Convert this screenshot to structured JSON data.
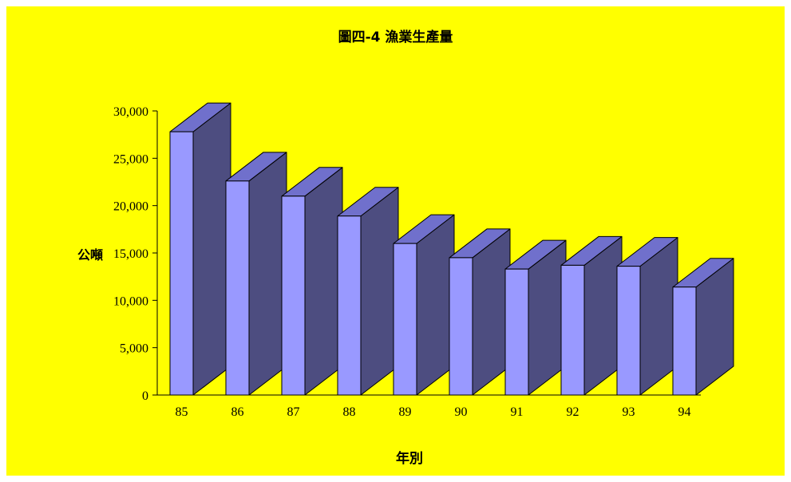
{
  "chart_data": {
    "type": "bar",
    "title": "圖四-4  漁業生產量",
    "ylabel": "公噸",
    "xlabel": "年別",
    "categories": [
      "85",
      "86",
      "87",
      "88",
      "89",
      "90",
      "91",
      "92",
      "93",
      "94"
    ],
    "values": [
      27800,
      22600,
      21000,
      18900,
      16000,
      14500,
      13300,
      13700,
      13600,
      11400
    ],
    "ylim": [
      0,
      30000
    ],
    "yticks": [
      0,
      5000,
      10000,
      15000,
      20000,
      25000,
      30000
    ],
    "ytick_labels": [
      "0",
      "5,000",
      "10,000",
      "15,000",
      "20,000",
      "25,000",
      "30,000"
    ],
    "grid": false,
    "style": "3d-bar",
    "colors": {
      "background": "#ffff00",
      "bar_front": "#9999ff",
      "bar_side": "#4d4d80",
      "bar_top": "#7070cc"
    }
  }
}
